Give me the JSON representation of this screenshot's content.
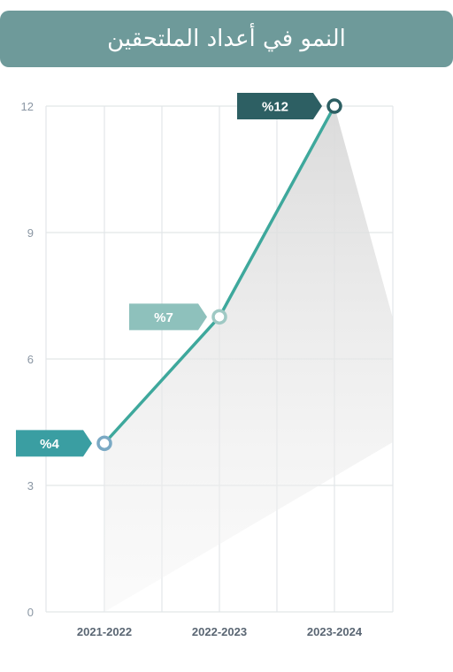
{
  "header": {
    "title": "النمو في أعداد الملتحقين"
  },
  "colors": {
    "header_bg": "#6e9a9a",
    "line": "#3ea89c",
    "grid": "#e2e6e8",
    "tag_1": "#3a9ea2",
    "tag_2": "#8ec1bc",
    "tag_3": "#2d5f63"
  },
  "chart_data": {
    "type": "line",
    "categories": [
      "2021-2022",
      "2022-2023",
      "2023-2024"
    ],
    "values": [
      4,
      7,
      12
    ],
    "data_labels": [
      "%4",
      "%7",
      "%12"
    ],
    "yticks": [
      "0",
      "3",
      "6",
      "9",
      "12"
    ],
    "ylim": [
      0,
      12
    ],
    "grid": true,
    "title": "",
    "xlabel": "",
    "ylabel": ""
  }
}
